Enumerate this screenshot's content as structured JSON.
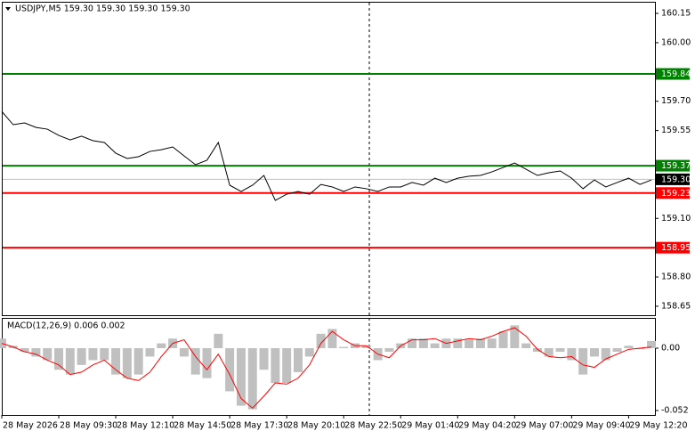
{
  "chart_data": [
    {
      "type": "line",
      "title": "USDJPY,M5  159.30 159.30 159.30 159.30",
      "color": "#000000",
      "categories": [
        "28 May 2026",
        null,
        null,
        null,
        null,
        "28 May 09:30",
        null,
        null,
        null,
        null,
        "28 May 12:10",
        null,
        null,
        null,
        null,
        "28 May 14:50",
        null,
        null,
        null,
        null,
        "28 May 17:30",
        null,
        null,
        null,
        null,
        "28 May 20:10",
        null,
        null,
        null,
        null,
        "28 May 22:50",
        null,
        null,
        null,
        null,
        "29 May 01:40",
        null,
        null,
        null,
        null,
        "29 May 04:20",
        null,
        null,
        null,
        null,
        "29 May 07:00",
        null,
        null,
        null,
        null,
        "29 May 09:40",
        null,
        null,
        null,
        null,
        "29 May 12:20",
        null,
        null
      ],
      "values": [
        159.648,
        159.58,
        159.589,
        159.566,
        159.557,
        159.525,
        159.502,
        159.521,
        159.498,
        159.489,
        159.434,
        159.407,
        159.416,
        159.443,
        159.452,
        159.466,
        159.42,
        159.375,
        159.398,
        159.489,
        159.27,
        159.238,
        159.27,
        159.32,
        159.192,
        159.224,
        159.238,
        159.224,
        159.274,
        159.261,
        159.238,
        159.261,
        159.252,
        159.238,
        159.261,
        159.261,
        159.284,
        159.27,
        159.306,
        159.284,
        159.306,
        159.316,
        159.32,
        159.338,
        159.361,
        159.384,
        159.352,
        159.32,
        159.334,
        159.343,
        159.306,
        159.252,
        159.297,
        159.261,
        159.284,
        159.306,
        159.274,
        159.297
      ],
      "ylim": [
        158.604,
        160.205
      ],
      "yticks": [
        160.15,
        {
          "value": 160.0,
          "label": "160.00"
        },
        {
          "value": 159.7,
          "label": "159.70"
        },
        159.55,
        {
          "value": 159.1,
          "label": "159.10"
        },
        {
          "value": 158.8,
          "label": "158.80"
        },
        158.65
      ],
      "levels": [
        {
          "value": 159.84,
          "color": "#008000"
        },
        {
          "value": 159.37,
          "color": "#008000"
        },
        {
          "value": 159.23,
          "color": "#ff0000"
        },
        {
          "value": 158.95,
          "color": "#ff0000"
        }
      ],
      "current": {
        "value": 159.3,
        "label": "159.30"
      }
    },
    {
      "type": "bar",
      "title": "MACD(12,26,9) 0.006 0.002",
      "color": "#c0c0c0",
      "line_color": "#ff0000",
      "values": [
        0.008,
        0.002,
        -0.003,
        -0.007,
        -0.01,
        -0.018,
        -0.022,
        -0.014,
        -0.01,
        -0.01,
        -0.022,
        -0.025,
        -0.022,
        -0.007,
        0.004,
        0.008,
        -0.007,
        -0.022,
        -0.025,
        0.012,
        -0.036,
        -0.048,
        -0.051,
        -0.018,
        -0.029,
        -0.029,
        -0.02,
        -0.007,
        0.012,
        0.016,
        0.001,
        0.004,
        0.002,
        -0.01,
        -0.003,
        0.004,
        0.008,
        0.008,
        0.004,
        0.008,
        0.008,
        0.007,
        0.008,
        0.008,
        0.014,
        0.019,
        0.004,
        -0.003,
        -0.007,
        -0.003,
        -0.01,
        -0.022,
        -0.007,
        -0.01,
        -0.003,
        0.002,
        -0.001,
        0.006
      ],
      "line_values": [
        0.004,
        0.001,
        -0.003,
        -0.005,
        -0.01,
        -0.014,
        -0.022,
        -0.02,
        -0.014,
        -0.01,
        -0.018,
        -0.025,
        -0.027,
        -0.02,
        -0.007,
        0.004,
        0.007,
        -0.007,
        -0.018,
        -0.005,
        -0.022,
        -0.042,
        -0.05,
        -0.04,
        -0.029,
        -0.03,
        -0.025,
        -0.014,
        0.004,
        0.014,
        0.007,
        0.002,
        0.002,
        -0.005,
        -0.008,
        0.002,
        0.007,
        0.007,
        0.008,
        0.004,
        0.006,
        0.008,
        0.007,
        0.01,
        0.014,
        0.017,
        0.01,
        -0.001,
        -0.007,
        -0.008,
        -0.007,
        -0.014,
        -0.016,
        -0.009,
        -0.005,
        -0.001,
        0,
        0.001
      ],
      "ylim": [
        -0.0557,
        0.0245
      ],
      "yticks": [
        {
          "value": 0,
          "label": "0.00"
        },
        -0.052
      ]
    }
  ]
}
